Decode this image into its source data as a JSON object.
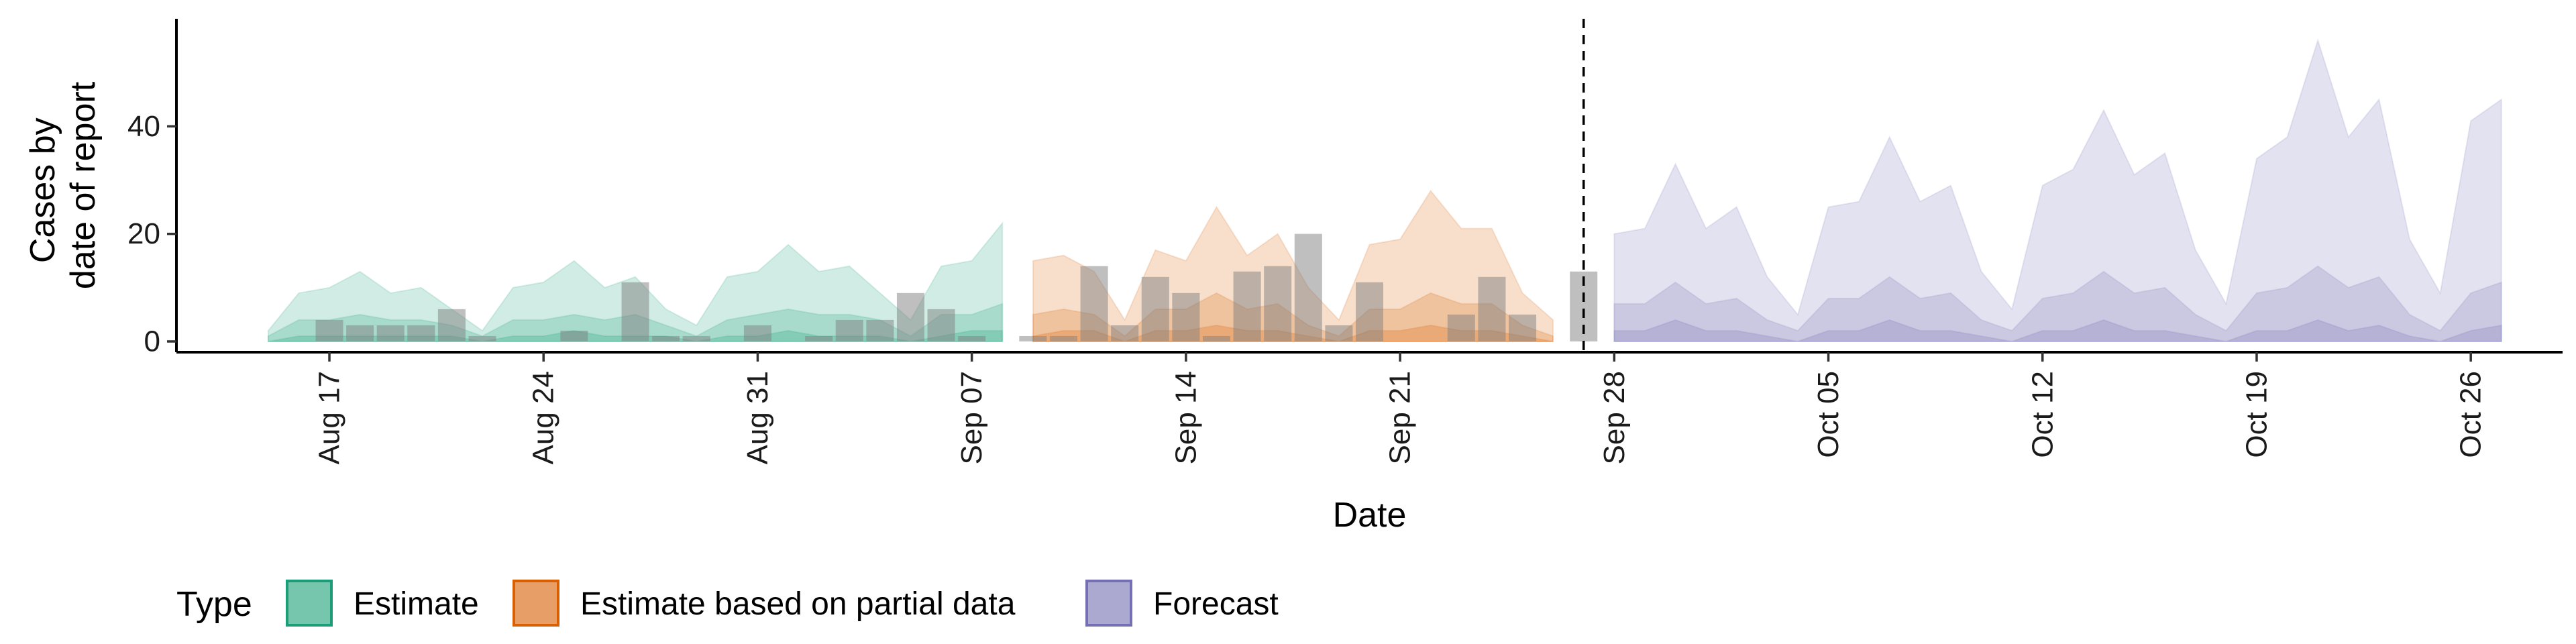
{
  "chart_data": {
    "type": "area",
    "xlabel": "Date",
    "ylabel_lines": [
      "Cases by",
      "date of report"
    ],
    "ylim": [
      -2,
      60
    ],
    "y_ticks": [
      0,
      20,
      40
    ],
    "x_ticks": [
      {
        "date": "2020-08-17",
        "label": "Aug 17"
      },
      {
        "date": "2020-08-24",
        "label": "Aug 24"
      },
      {
        "date": "2020-08-31",
        "label": "Aug 31"
      },
      {
        "date": "2020-09-07",
        "label": "Sep 07"
      },
      {
        "date": "2020-09-14",
        "label": "Sep 14"
      },
      {
        "date": "2020-09-21",
        "label": "Sep 21"
      },
      {
        "date": "2020-09-28",
        "label": "Sep 28"
      },
      {
        "date": "2020-10-05",
        "label": "Oct 05"
      },
      {
        "date": "2020-10-12",
        "label": "Oct 12"
      },
      {
        "date": "2020-10-19",
        "label": "Oct 19"
      },
      {
        "date": "2020-10-26",
        "label": "Oct 26"
      }
    ],
    "xlim": [
      "2020-08-12",
      "2020-10-29"
    ],
    "forecast_date": "2020-09-27",
    "legend": {
      "title": "Type",
      "position": "bottom",
      "entries": [
        {
          "label": "Estimate",
          "fill": "#1b9e77",
          "stroke": "#1b9e77"
        },
        {
          "label": "Estimate based on partial data",
          "fill": "#d95f02",
          "stroke": "#d95f02"
        },
        {
          "label": "Forecast",
          "fill": "#7570b3",
          "stroke": "#7570b3"
        }
      ]
    },
    "observed_cases": {
      "start": "2020-08-16",
      "values": [
        0,
        4,
        3,
        3,
        3,
        6,
        1,
        0,
        0,
        2,
        0,
        11,
        1,
        1,
        0,
        3,
        0,
        1,
        4,
        4,
        9,
        6,
        1,
        0,
        1,
        1,
        14,
        3,
        12,
        9,
        1,
        13,
        14,
        20,
        3,
        11,
        0,
        0,
        5,
        12,
        5,
        0,
        13
      ]
    },
    "series": [
      {
        "type": "Estimate",
        "start": "2020-08-15",
        "outer_upper": [
          2,
          9,
          10,
          13,
          9,
          10,
          6,
          2,
          10,
          11,
          15,
          10,
          12,
          6,
          3,
          12,
          13,
          18,
          13,
          14,
          9,
          4,
          14,
          15,
          22
        ],
        "inner_upper": [
          1,
          4,
          4,
          5,
          4,
          4,
          3,
          1,
          4,
          4,
          5,
          4,
          5,
          3,
          1,
          4,
          5,
          6,
          5,
          5,
          4,
          1,
          5,
          5,
          7
        ],
        "median": [
          0,
          1,
          1,
          1,
          1,
          1,
          1,
          0,
          1,
          1,
          2,
          1,
          1,
          1,
          0,
          1,
          1,
          2,
          1,
          1,
          1,
          0,
          1,
          2,
          2
        ]
      },
      {
        "type": "Estimate based on partial data",
        "start": "2020-09-09",
        "outer_upper": [
          15,
          16,
          13,
          4,
          17,
          15,
          25,
          16,
          20,
          10,
          4,
          18,
          19,
          28,
          21,
          21,
          9,
          4
        ],
        "inner_upper": [
          5,
          6,
          5,
          1,
          6,
          6,
          9,
          6,
          7,
          3,
          1,
          6,
          6,
          9,
          7,
          7,
          3,
          1
        ],
        "median": [
          1,
          2,
          2,
          0,
          2,
          2,
          3,
          2,
          2,
          1,
          0,
          2,
          2,
          3,
          2,
          2,
          1,
          0
        ]
      },
      {
        "type": "Forecast",
        "start": "2020-09-28",
        "outer_upper": [
          20,
          21,
          33,
          21,
          25,
          12,
          5,
          25,
          26,
          38,
          26,
          29,
          13,
          6,
          29,
          32,
          43,
          31,
          35,
          17,
          7,
          34,
          38,
          56,
          38,
          45,
          19,
          9,
          41,
          45
        ],
        "inner_upper": [
          7,
          7,
          11,
          7,
          8,
          4,
          2,
          8,
          8,
          12,
          8,
          9,
          4,
          2,
          8,
          9,
          13,
          9,
          10,
          5,
          2,
          9,
          10,
          14,
          10,
          12,
          5,
          2,
          9,
          11
        ],
        "median": [
          2,
          2,
          4,
          2,
          2,
          1,
          0,
          2,
          2,
          4,
          2,
          2,
          1,
          0,
          2,
          2,
          4,
          2,
          2,
          1,
          0,
          2,
          2,
          4,
          2,
          3,
          1,
          0,
          2,
          3
        ]
      }
    ]
  }
}
